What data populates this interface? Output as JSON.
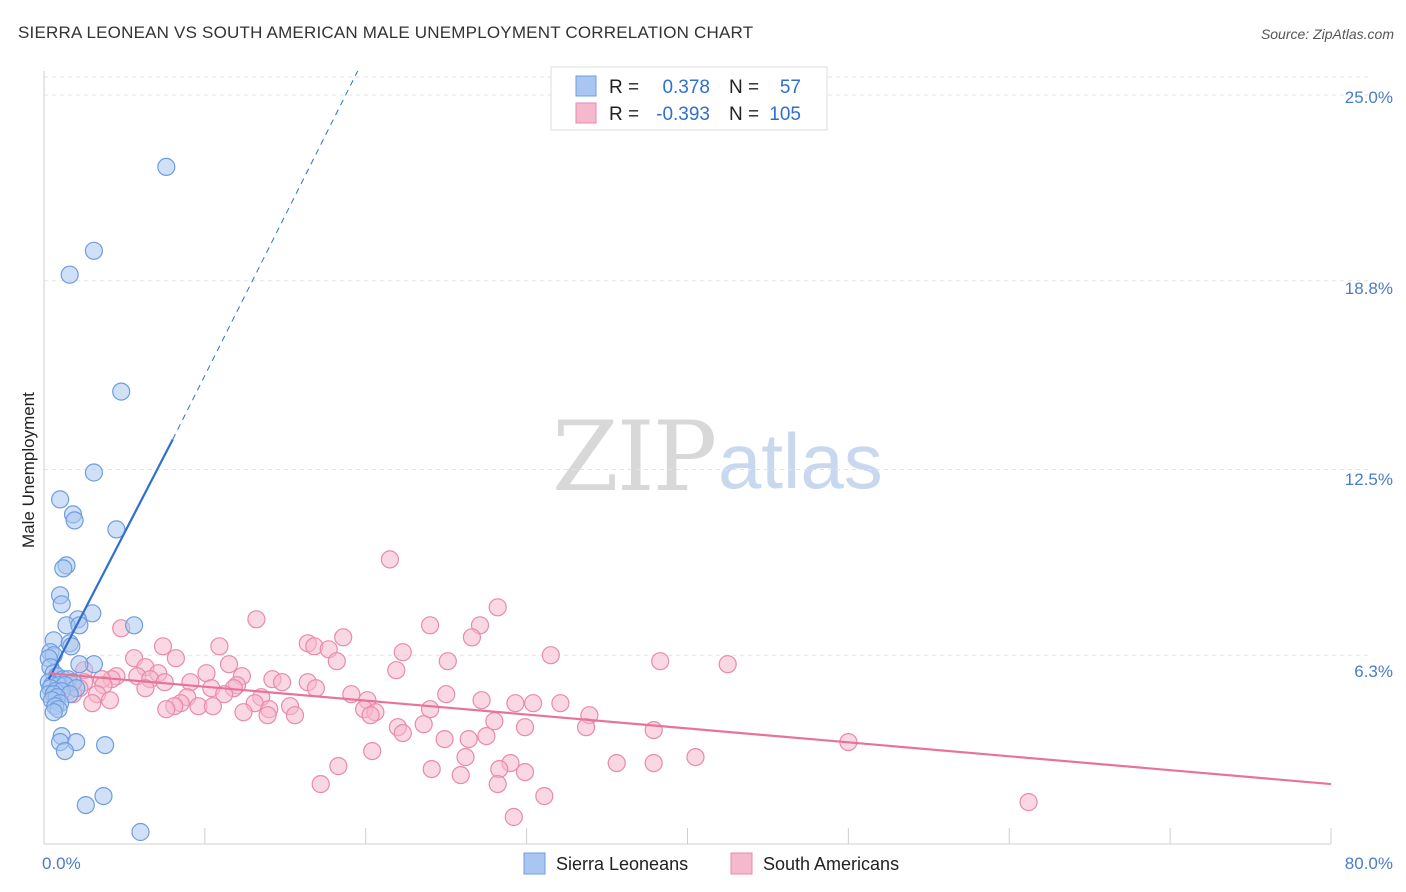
{
  "header": {
    "title": "SIERRA LEONEAN VS SOUTH AMERICAN MALE UNEMPLOYMENT CORRELATION CHART",
    "source": "Source: ZipAtlas.com"
  },
  "watermark": {
    "zip": "ZIP",
    "atlas": "atlas"
  },
  "colors": {
    "blue_fill": "#a9c6f0",
    "blue_stroke": "#6f9de0",
    "blue_line": "#2f6fd0",
    "pink_fill": "#f6b8cc",
    "pink_stroke": "#e98aa9",
    "pink_line": "#e8739a",
    "grid": "#e3e3e3",
    "tick_text": "#4a7cc7"
  },
  "legend": {
    "rows": [
      {
        "r_label": "R =",
        "r_value": "0.378",
        "n_label": "N =",
        "n_value": "57"
      },
      {
        "r_label": "R =",
        "r_value": "-0.393",
        "n_label": "N =",
        "n_value": "105"
      }
    ]
  },
  "chart_data": {
    "type": "scatter",
    "title": "SIERRA LEONEAN VS SOUTH AMERICAN MALE UNEMPLOYMENT CORRELATION CHART",
    "xlabel": "",
    "ylabel": "Male Unemployment",
    "xlim": [
      0,
      80
    ],
    "ylim": [
      0,
      25.8
    ],
    "x_tick_labels": [
      "0.0%",
      "80.0%"
    ],
    "y_ticks": [
      6.3,
      12.5,
      18.8,
      25.0
    ],
    "y_tick_labels": [
      "6.3%",
      "12.5%",
      "18.8%",
      "25.0%"
    ],
    "grid": true,
    "legend_position": "top-center",
    "series": [
      {
        "name": "Sierra Leoneans",
        "color": "blue",
        "R": 0.378,
        "N": 57,
        "trend": {
          "x0": 0.3,
          "y0": 5.5,
          "x1": 8.0,
          "y1": 13.5,
          "dashed_to_x": 19.5,
          "dashed_to_y": 25.8
        },
        "points": [
          [
            7.6,
            22.6
          ],
          [
            3.1,
            19.8
          ],
          [
            1.6,
            19.0
          ],
          [
            4.8,
            15.1
          ],
          [
            3.1,
            12.4
          ],
          [
            1.0,
            11.5
          ],
          [
            1.8,
            11.0
          ],
          [
            1.9,
            10.8
          ],
          [
            4.5,
            10.5
          ],
          [
            1.4,
            9.3
          ],
          [
            1.2,
            9.2
          ],
          [
            1.0,
            8.3
          ],
          [
            1.1,
            8.0
          ],
          [
            3.0,
            7.7
          ],
          [
            2.1,
            7.5
          ],
          [
            1.4,
            7.3
          ],
          [
            5.6,
            7.3
          ],
          [
            2.2,
            7.3
          ],
          [
            0.6,
            6.8
          ],
          [
            1.6,
            6.7
          ],
          [
            1.7,
            6.6
          ],
          [
            0.4,
            6.4
          ],
          [
            0.6,
            6.3
          ],
          [
            0.3,
            6.2
          ],
          [
            3.1,
            6.0
          ],
          [
            2.2,
            6.0
          ],
          [
            0.4,
            5.9
          ],
          [
            0.6,
            5.7
          ],
          [
            0.8,
            5.6
          ],
          [
            1.2,
            5.5
          ],
          [
            1.5,
            5.5
          ],
          [
            1.8,
            5.4
          ],
          [
            0.3,
            5.4
          ],
          [
            0.5,
            5.3
          ],
          [
            0.9,
            5.3
          ],
          [
            1.3,
            5.3
          ],
          [
            2.0,
            5.2
          ],
          [
            0.4,
            5.2
          ],
          [
            0.7,
            5.1
          ],
          [
            1.1,
            5.1
          ],
          [
            0.3,
            5.0
          ],
          [
            0.6,
            5.0
          ],
          [
            1.6,
            5.0
          ],
          [
            0.8,
            4.9
          ],
          [
            0.5,
            4.8
          ],
          [
            1.0,
            4.7
          ],
          [
            0.7,
            4.6
          ],
          [
            0.9,
            4.5
          ],
          [
            0.6,
            4.4
          ],
          [
            1.1,
            3.6
          ],
          [
            1.0,
            3.4
          ],
          [
            2.0,
            3.4
          ],
          [
            3.8,
            3.3
          ],
          [
            1.3,
            3.1
          ],
          [
            2.6,
            1.3
          ],
          [
            3.7,
            1.6
          ],
          [
            6.0,
            0.4
          ]
        ]
      },
      {
        "name": "South Americans",
        "color": "pink",
        "R": -0.393,
        "N": 105,
        "trend": {
          "x0": 0.3,
          "y0": 5.7,
          "x1": 80.0,
          "y1": 2.0
        },
        "points": [
          [
            21.5,
            9.5
          ],
          [
            28.2,
            7.9
          ],
          [
            13.2,
            7.5
          ],
          [
            4.8,
            7.2
          ],
          [
            24.0,
            7.3
          ],
          [
            27.1,
            7.3
          ],
          [
            18.6,
            6.9
          ],
          [
            26.6,
            6.9
          ],
          [
            16.4,
            6.7
          ],
          [
            10.9,
            6.6
          ],
          [
            16.8,
            6.6
          ],
          [
            17.7,
            6.5
          ],
          [
            7.4,
            6.6
          ],
          [
            22.3,
            6.4
          ],
          [
            31.5,
            6.3
          ],
          [
            8.2,
            6.2
          ],
          [
            18.2,
            6.1
          ],
          [
            25.1,
            6.1
          ],
          [
            38.3,
            6.1
          ],
          [
            42.5,
            6.0
          ],
          [
            11.5,
            6.0
          ],
          [
            5.6,
            6.2
          ],
          [
            6.3,
            5.9
          ],
          [
            2.5,
            5.8
          ],
          [
            21.9,
            5.8
          ],
          [
            10.1,
            5.7
          ],
          [
            12.3,
            5.6
          ],
          [
            7.1,
            5.7
          ],
          [
            5.8,
            5.6
          ],
          [
            4.5,
            5.6
          ],
          [
            4.2,
            5.5
          ],
          [
            3.6,
            5.5
          ],
          [
            14.2,
            5.5
          ],
          [
            14.8,
            5.4
          ],
          [
            16.4,
            5.4
          ],
          [
            6.6,
            5.5
          ],
          [
            7.5,
            5.4
          ],
          [
            9.1,
            5.4
          ],
          [
            12.0,
            5.3
          ],
          [
            3.7,
            5.3
          ],
          [
            2.5,
            5.4
          ],
          [
            1.7,
            5.3
          ],
          [
            16.9,
            5.2
          ],
          [
            10.4,
            5.2
          ],
          [
            11.8,
            5.2
          ],
          [
            6.3,
            5.2
          ],
          [
            2.2,
            5.2
          ],
          [
            1.5,
            5.1
          ],
          [
            1.8,
            5.0
          ],
          [
            3.3,
            5.0
          ],
          [
            19.1,
            5.0
          ],
          [
            25.0,
            5.0
          ],
          [
            11.2,
            5.0
          ],
          [
            13.5,
            4.9
          ],
          [
            8.9,
            4.9
          ],
          [
            8.5,
            4.7
          ],
          [
            13.1,
            4.7
          ],
          [
            20.1,
            4.8
          ],
          [
            27.2,
            4.8
          ],
          [
            30.4,
            4.7
          ],
          [
            32.1,
            4.7
          ],
          [
            29.3,
            4.7
          ],
          [
            9.6,
            4.6
          ],
          [
            10.5,
            4.6
          ],
          [
            8.1,
            4.6
          ],
          [
            3.0,
            4.7
          ],
          [
            7.6,
            4.5
          ],
          [
            4.1,
            4.8
          ],
          [
            15.3,
            4.6
          ],
          [
            14.0,
            4.5
          ],
          [
            19.9,
            4.5
          ],
          [
            24.0,
            4.5
          ],
          [
            12.4,
            4.4
          ],
          [
            13.9,
            4.3
          ],
          [
            15.6,
            4.3
          ],
          [
            20.6,
            4.4
          ],
          [
            20.3,
            4.3
          ],
          [
            23.6,
            4.0
          ],
          [
            33.9,
            4.3
          ],
          [
            28.0,
            4.1
          ],
          [
            29.9,
            3.9
          ],
          [
            22.0,
            3.9
          ],
          [
            33.7,
            3.9
          ],
          [
            37.9,
            3.8
          ],
          [
            22.3,
            3.7
          ],
          [
            27.5,
            3.6
          ],
          [
            24.9,
            3.5
          ],
          [
            26.4,
            3.5
          ],
          [
            50.0,
            3.4
          ],
          [
            20.4,
            3.1
          ],
          [
            26.2,
            2.9
          ],
          [
            29.0,
            2.7
          ],
          [
            40.5,
            2.9
          ],
          [
            37.9,
            2.7
          ],
          [
            35.6,
            2.7
          ],
          [
            18.3,
            2.6
          ],
          [
            24.1,
            2.5
          ],
          [
            28.3,
            2.5
          ],
          [
            25.9,
            2.3
          ],
          [
            29.9,
            2.4
          ],
          [
            17.2,
            2.0
          ],
          [
            28.2,
            2.0
          ],
          [
            31.1,
            1.6
          ],
          [
            61.2,
            1.4
          ],
          [
            29.2,
            0.9
          ]
        ]
      }
    ]
  },
  "bottom_legend": {
    "items": [
      {
        "label": "Sierra Leoneans"
      },
      {
        "label": "South Americans"
      }
    ]
  }
}
